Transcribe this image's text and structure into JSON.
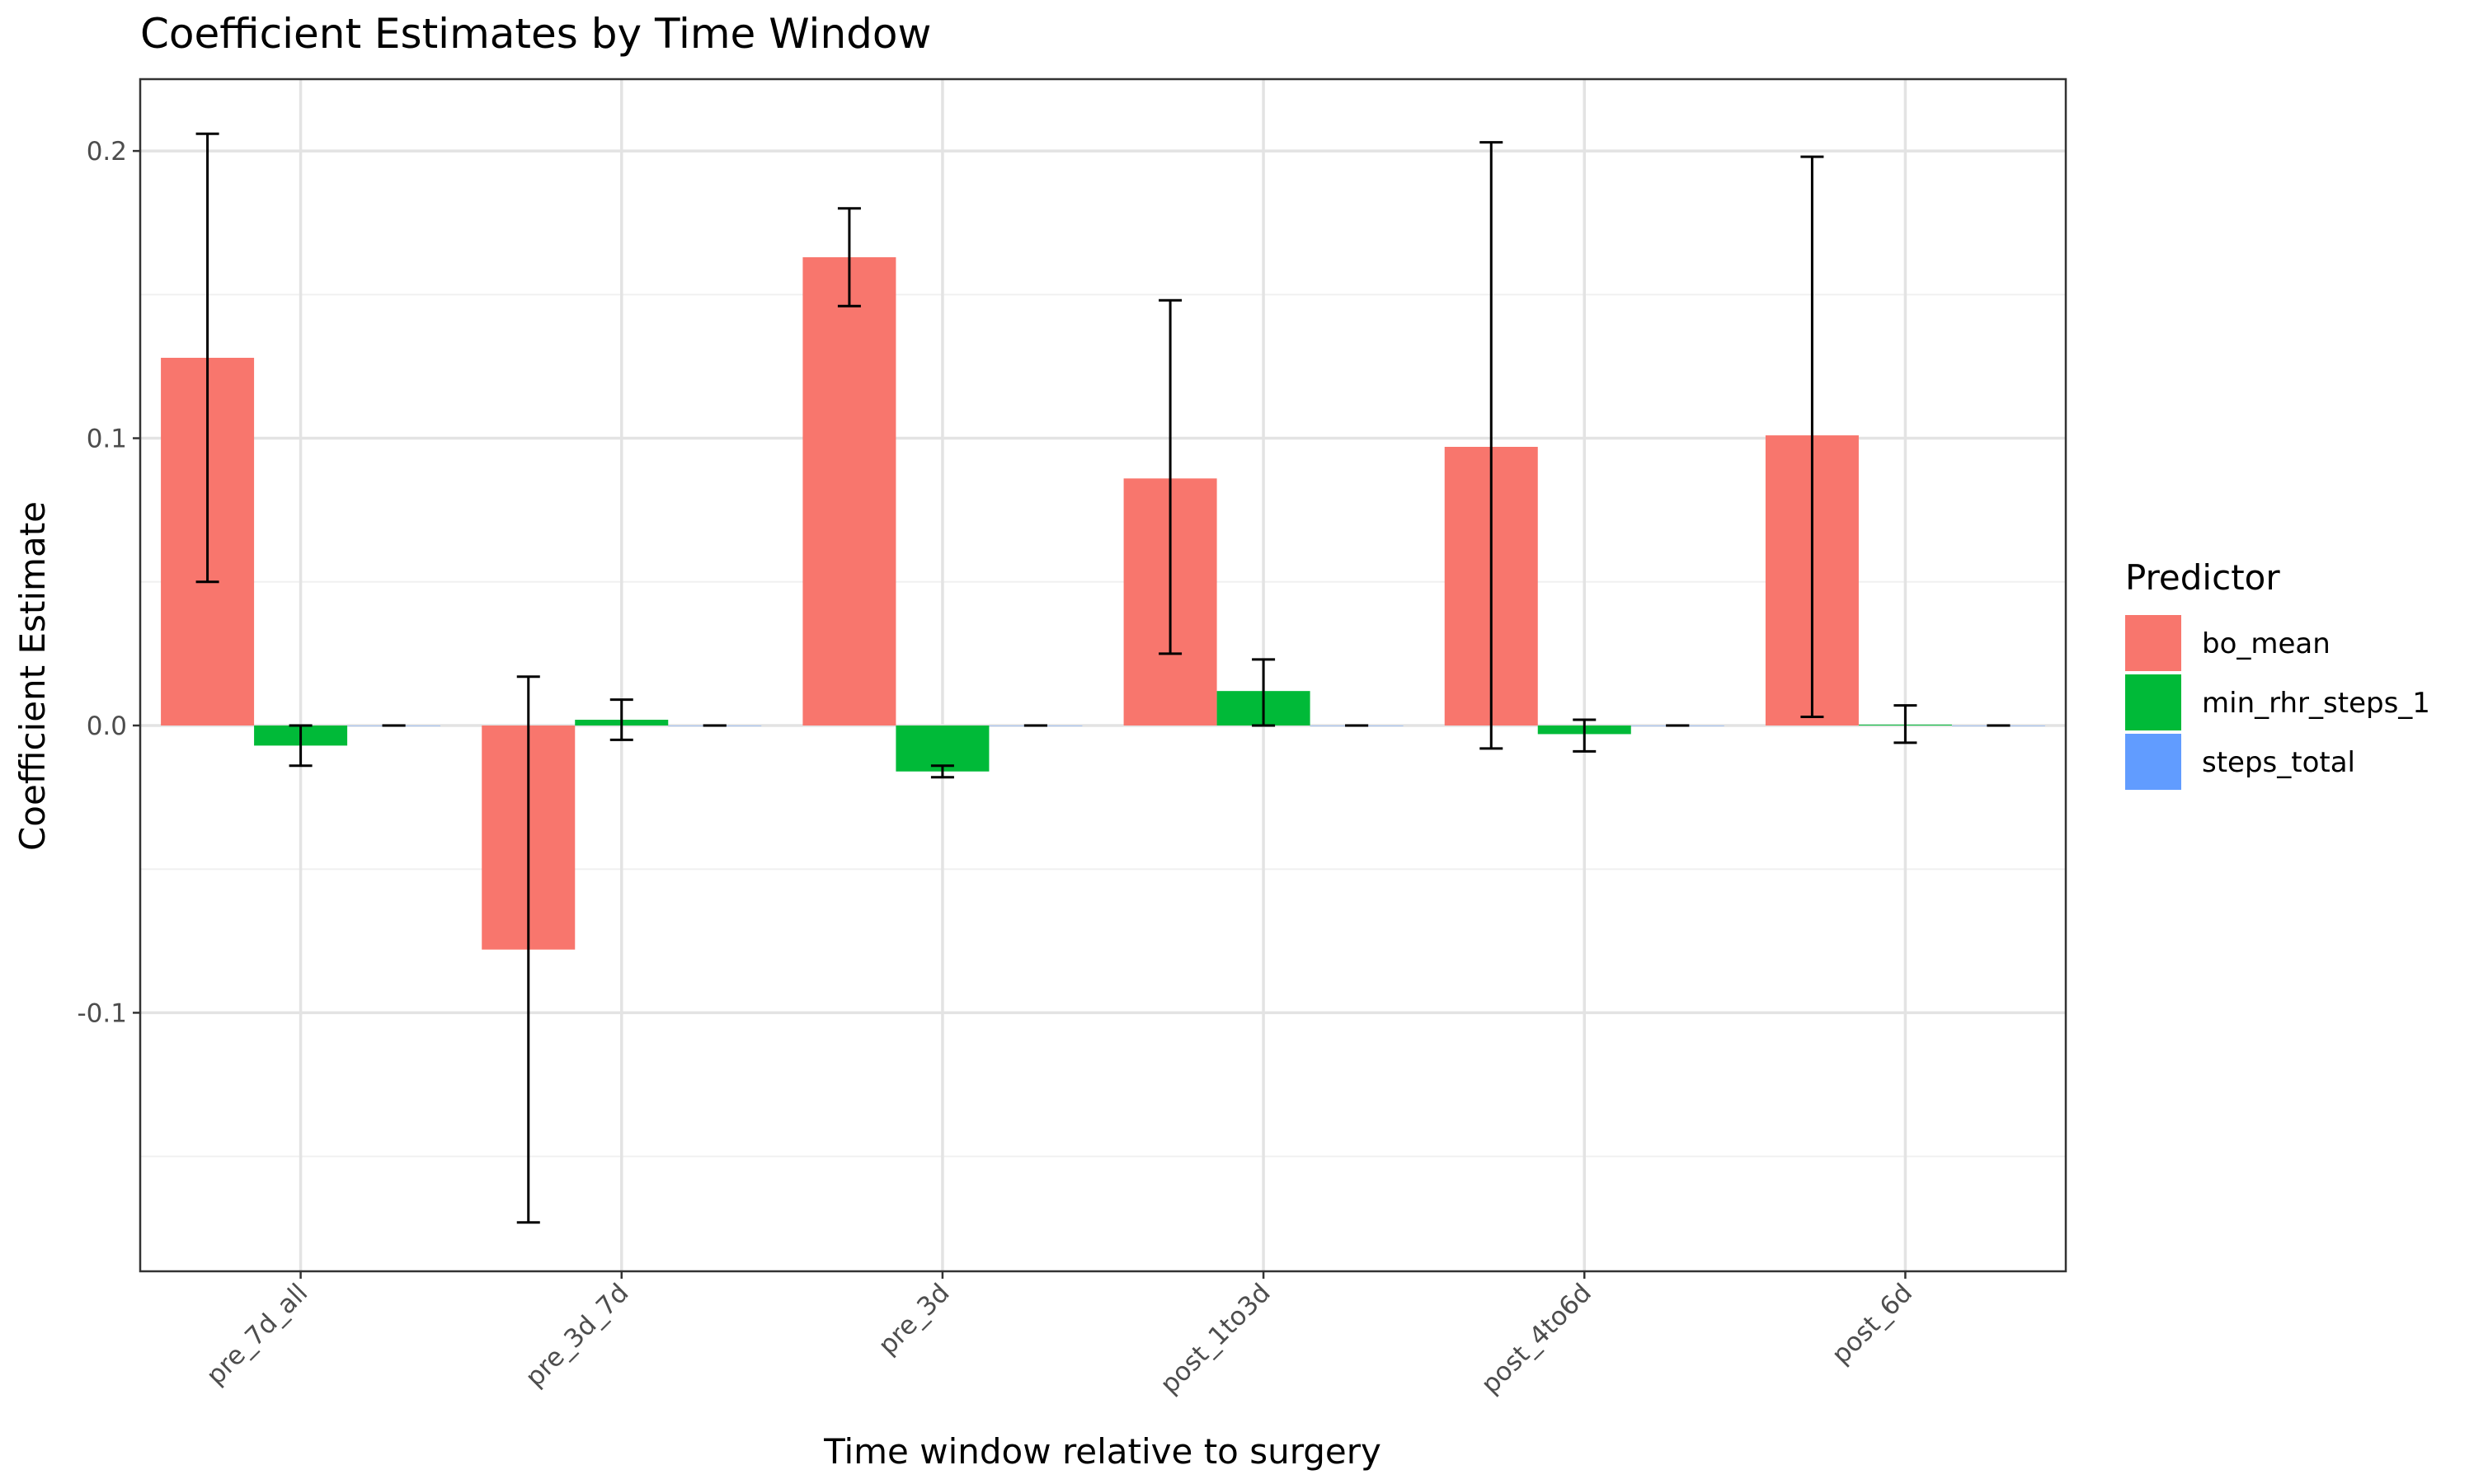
{
  "chart_data": {
    "type": "bar",
    "title": "Coefficient Estimates by Time Window",
    "xlabel": "Time window relative to surgery",
    "ylabel": "Coefficient Estimate",
    "categories": [
      "pre_7d_all",
      "pre_3d_7d",
      "pre_3d",
      "post_1to3d",
      "post_4to6d",
      "post_6d"
    ],
    "ylim": [
      -0.19,
      0.225
    ],
    "yticks": [
      -0.1,
      0.0,
      0.1,
      0.2
    ],
    "ytick_labels": [
      "-0.1",
      "0.0",
      "0.1",
      "0.2"
    ],
    "grid": true,
    "legend": {
      "title": "Predictor",
      "position": "right"
    },
    "series": [
      {
        "name": "bo_mean",
        "color": "#F8766D",
        "values": [
          0.128,
          -0.078,
          0.163,
          0.086,
          0.097,
          0.101
        ],
        "err_low": [
          0.05,
          -0.173,
          0.146,
          0.025,
          -0.008,
          0.003
        ],
        "err_high": [
          0.206,
          0.017,
          0.18,
          0.148,
          0.203,
          0.198
        ]
      },
      {
        "name": "min_rhr_steps_1",
        "color": "#00BA38",
        "values": [
          -0.007,
          0.002,
          -0.016,
          0.012,
          -0.003,
          0.0003
        ],
        "err_low": [
          -0.014,
          -0.005,
          -0.018,
          0.0,
          -0.009,
          -0.006
        ],
        "err_high": [
          0.0,
          0.009,
          -0.014,
          0.023,
          0.002,
          0.007
        ]
      },
      {
        "name": "steps_total",
        "color": "#619CFF",
        "values": [
          0,
          0,
          0,
          0,
          0,
          0
        ],
        "err_low": [
          0,
          0,
          0,
          0,
          0,
          0
        ],
        "err_high": [
          0,
          0,
          0,
          0,
          0,
          0
        ]
      }
    ]
  }
}
